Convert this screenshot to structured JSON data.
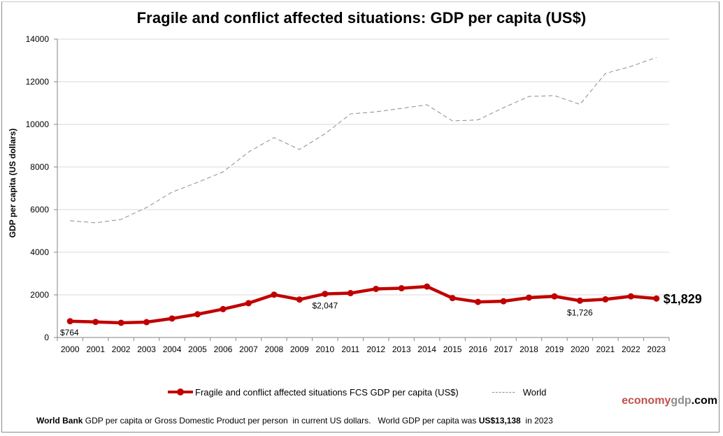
{
  "chart_data": {
    "type": "line",
    "title": "Fragile and conflict affected situations: GDP per capita (US$)",
    "xlabel": "",
    "ylabel": "GDP per capita (US dollars)",
    "ylim": [
      0,
      14000
    ],
    "yticks": [
      0,
      2000,
      4000,
      6000,
      8000,
      10000,
      12000,
      14000
    ],
    "grid": true,
    "legend_position": "bottom",
    "categories": [
      "2000",
      "2001",
      "2002",
      "2003",
      "2004",
      "2005",
      "2006",
      "2007",
      "2008",
      "2009",
      "2010",
      "2011",
      "2012",
      "2013",
      "2014",
      "2015",
      "2016",
      "2017",
      "2018",
      "2019",
      "2020",
      "2021",
      "2022",
      "2023"
    ],
    "series": [
      {
        "name": "Fragile and conflict affected situations FCS GDP per capita (US$)",
        "style": "solid-markers",
        "color": "#c00000",
        "values": [
          764,
          730,
          690,
          720,
          890,
          1090,
          1330,
          1610,
          2010,
          1780,
          2047,
          2080,
          2280,
          2310,
          2390,
          1850,
          1670,
          1700,
          1870,
          1930,
          1726,
          1790,
          1930,
          1829
        ]
      },
      {
        "name": "World",
        "style": "dashed",
        "color": "#8c8c8c",
        "values": [
          5480,
          5380,
          5540,
          6100,
          6820,
          7280,
          7770,
          8700,
          9380,
          8820,
          9560,
          10490,
          10590,
          10750,
          10920,
          10160,
          10210,
          10780,
          11310,
          11350,
          10940,
          12390,
          12720,
          13138
        ]
      }
    ],
    "annotations": [
      {
        "category": "2000",
        "text": "$764",
        "series": 0,
        "emphasis": "normal"
      },
      {
        "category": "2010",
        "text": "$2,047",
        "series": 0,
        "emphasis": "normal"
      },
      {
        "category": "2020",
        "text": "$1,726",
        "series": 0,
        "emphasis": "normal"
      },
      {
        "category": "2023",
        "text": "$1,829",
        "series": 0,
        "emphasis": "large-bold"
      }
    ]
  },
  "legend": {
    "fcs_label": "Fragile and conflict affected situations FCS GDP per capita (US$)",
    "world_label": "World"
  },
  "brand": {
    "part1": "economy",
    "part2": "gdp",
    "part3": ".com"
  },
  "footer": {
    "source_bold": "World Bank",
    "text1": " GDP per capita or Gross Domestic Product per person  in current US dollars.   World GDP per capita was ",
    "value_bold": "US$13,138",
    "text2": "  in 2023"
  }
}
